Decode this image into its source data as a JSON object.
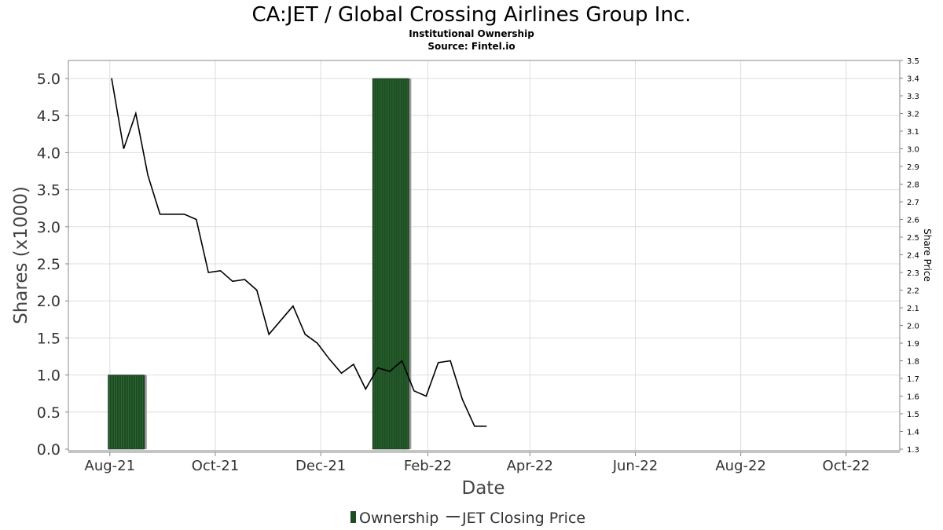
{
  "chart_data": {
    "type": "bar+line",
    "title": "CA:JET / Global Crossing Airlines Group Inc.",
    "subtitle_lines": [
      "Institutional Ownership",
      "Source: Fintel.io"
    ],
    "xlabel": "Date",
    "ylabel": "Shares (x1000)",
    "y2label": "Share Price",
    "x_tick_labels": [
      "Aug-21",
      "Oct-21",
      "Dec-21",
      "Feb-22",
      "Apr-22",
      "Jun-22",
      "Aug-22",
      "Oct-22"
    ],
    "x_tick_dates": [
      "2021-08-01",
      "2021-10-01",
      "2021-12-01",
      "2022-02-01",
      "2022-04-01",
      "2022-06-01",
      "2022-08-01",
      "2022-10-01"
    ],
    "xlim": [
      "2021-07-08",
      "2022-11-01"
    ],
    "ylim": [
      0,
      5.25
    ],
    "y_ticks": [
      "0.0",
      "0.5",
      "1.0",
      "1.5",
      "2.0",
      "2.5",
      "3.0",
      "3.5",
      "4.0",
      "4.5",
      "5.0"
    ],
    "y2lim": [
      1.3,
      3.5
    ],
    "y2_ticks": [
      "1.3",
      "1.4",
      "1.5",
      "1.6",
      "1.7",
      "1.8",
      "1.9",
      "2.0",
      "2.1",
      "2.2",
      "2.3",
      "2.4",
      "2.5",
      "2.6",
      "2.7",
      "2.8",
      "2.9",
      "3.0",
      "3.1",
      "3.2",
      "3.3",
      "3.4",
      "3.5"
    ],
    "grid": true,
    "legend_position": "bottom-center",
    "series": [
      {
        "name": "Ownership",
        "type": "bar",
        "axis": "left",
        "color": "#1e4d23",
        "bars": [
          {
            "start": "2021-07-31",
            "end": "2021-08-21",
            "value": 1.0
          },
          {
            "start": "2021-12-31",
            "end": "2022-01-21",
            "value": 5.0
          }
        ]
      },
      {
        "name": "JET Closing Price",
        "type": "line",
        "axis": "right",
        "color": "#000000",
        "points": [
          [
            "2021-08-02",
            3.4
          ],
          [
            "2021-08-09",
            3.0
          ],
          [
            "2021-08-16",
            3.2
          ],
          [
            "2021-08-23",
            2.85
          ],
          [
            "2021-08-30",
            2.63
          ],
          [
            "2021-09-06",
            2.63
          ],
          [
            "2021-09-13",
            2.63
          ],
          [
            "2021-09-20",
            2.6
          ],
          [
            "2021-09-27",
            2.3
          ],
          [
            "2021-10-04",
            2.31
          ],
          [
            "2021-10-11",
            2.25
          ],
          [
            "2021-10-18",
            2.26
          ],
          [
            "2021-10-25",
            2.2
          ],
          [
            "2021-11-01",
            1.95
          ],
          [
            "2021-11-08",
            2.03
          ],
          [
            "2021-11-15",
            2.11
          ],
          [
            "2021-11-22",
            1.95
          ],
          [
            "2021-11-29",
            1.9
          ],
          [
            "2021-12-06",
            1.81
          ],
          [
            "2021-12-13",
            1.73
          ],
          [
            "2021-12-20",
            1.78
          ],
          [
            "2021-12-27",
            1.64
          ],
          [
            "2022-01-03",
            1.76
          ],
          [
            "2022-01-10",
            1.74
          ],
          [
            "2022-01-17",
            1.8
          ],
          [
            "2022-01-24",
            1.63
          ],
          [
            "2022-01-31",
            1.6
          ],
          [
            "2022-02-07",
            1.79
          ],
          [
            "2022-02-14",
            1.8
          ],
          [
            "2022-02-21",
            1.58
          ],
          [
            "2022-02-28",
            1.43
          ],
          [
            "2022-03-07",
            1.43
          ]
        ]
      }
    ]
  }
}
